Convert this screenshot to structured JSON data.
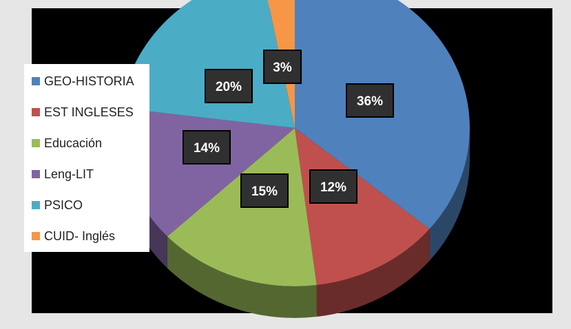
{
  "chart_data": {
    "type": "pie",
    "three_d": true,
    "title": "",
    "categories": [
      "GEO-HISTORIA",
      "EST INGLESES",
      "Educación",
      "Leng-LIT",
      "PSICO",
      "CUID- Inglés"
    ],
    "values": [
      36,
      12,
      15,
      14,
      20,
      3
    ],
    "data_labels": [
      "36%",
      "12%",
      "15%",
      "14%",
      "20%",
      "3%"
    ],
    "colors": [
      "#4f81bd",
      "#c0504d",
      "#9bbb59",
      "#8064a2",
      "#4bacc6",
      "#f79646"
    ],
    "legend": {
      "placement": "left"
    },
    "background": "#000000"
  }
}
